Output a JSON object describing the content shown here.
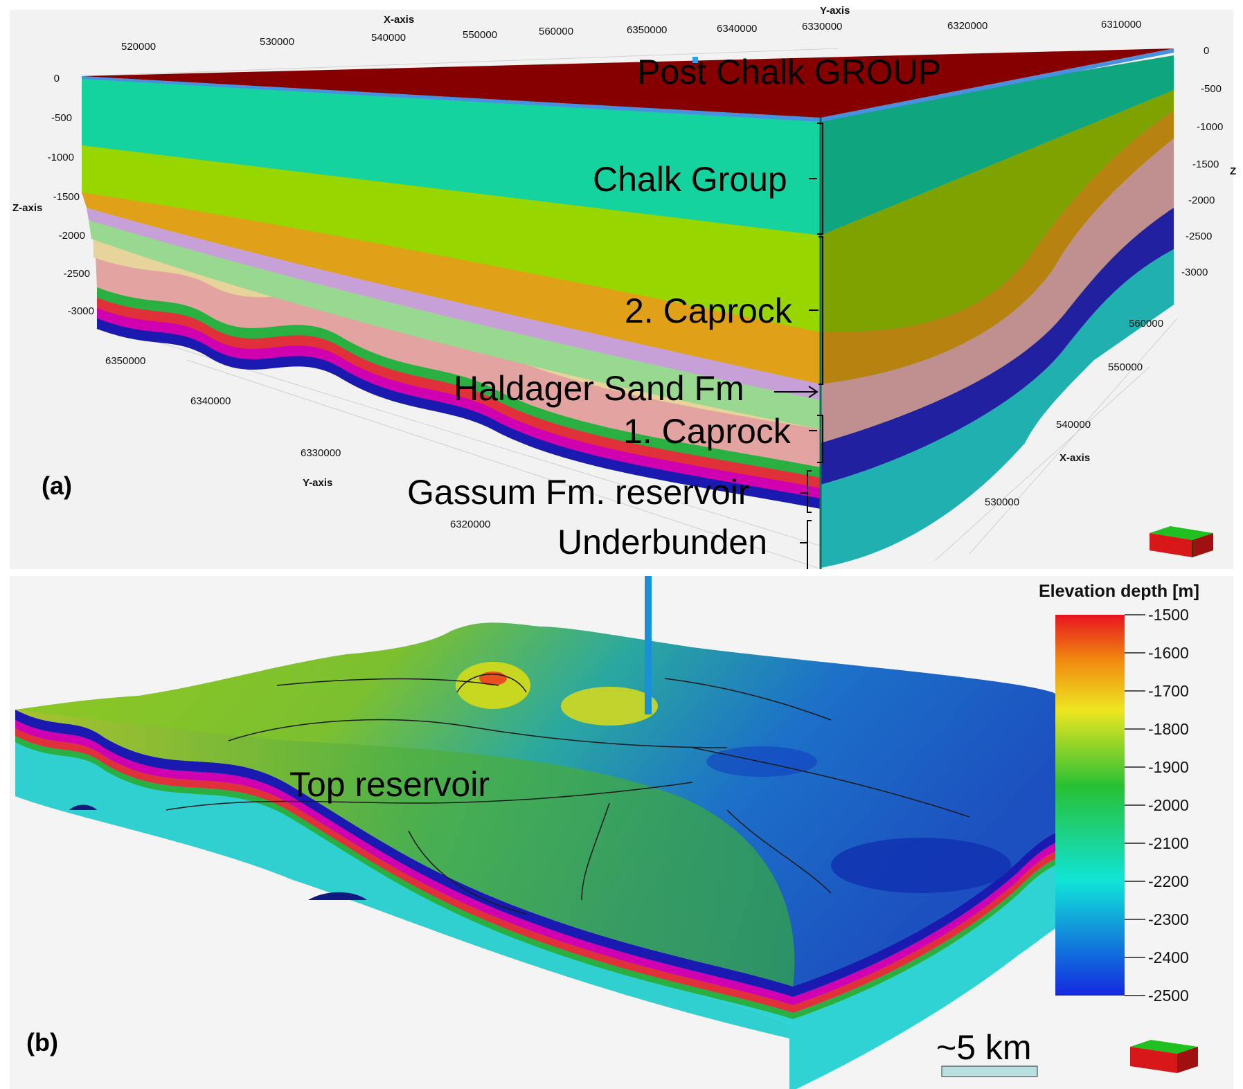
{
  "panel_a": {
    "label": "(a)",
    "x_axis_title": "X-axis",
    "y_axis_title": "Y-axis",
    "z_axis_title": "Z-axis",
    "z_axis_title_right": "Z",
    "top_x_ticks": [
      "520000",
      "530000",
      "540000",
      "550000",
      "560000"
    ],
    "top_y_ticks": [
      "6350000",
      "6340000",
      "6330000",
      "6320000",
      "6310000"
    ],
    "left_z_ticks": [
      "0",
      "-500",
      "-1000",
      "-1500",
      "-2000",
      "-2500",
      "-3000"
    ],
    "right_z_ticks": [
      "0",
      "-500",
      "-1000",
      "-1500",
      "-2000",
      "-2500",
      "-3000"
    ],
    "bottom_y_ticks": [
      "6350000",
      "6340000",
      "6330000",
      "6320000"
    ],
    "bottom_x_ticks": [
      "560000",
      "550000",
      "540000",
      "530000"
    ],
    "units": [
      {
        "label": "Post Chalk GROUP",
        "color": "#8b0000"
      },
      {
        "label": "Chalk Group",
        "color": "#12c99a"
      },
      {
        "label": "2. Caprock",
        "color": "#c9a000"
      },
      {
        "label": "Haldager Sand Fm",
        "color": "#c8a0d8"
      },
      {
        "label": "1. Caprock",
        "color": "#e0a090"
      },
      {
        "label": "Gassum Fm. reservoir",
        "color": "#d000a0"
      },
      {
        "label": "Underbunden",
        "color": "#2fd3d3"
      }
    ]
  },
  "panel_b": {
    "label": "(b)",
    "surface_label": "Top reservoir",
    "scale_bar_label": "~5 km",
    "colorbar": {
      "title": "Elevation depth [m]",
      "ticks": [
        "-1500",
        "-1600",
        "-1700",
        "-1800",
        "-1900",
        "-2000",
        "-2100",
        "-2200",
        "-2300",
        "-2400",
        "-2500"
      ],
      "colors": [
        "#e8141e",
        "#f09010",
        "#e8e020",
        "#20c030",
        "#10e0d0",
        "#1030e0"
      ]
    }
  }
}
